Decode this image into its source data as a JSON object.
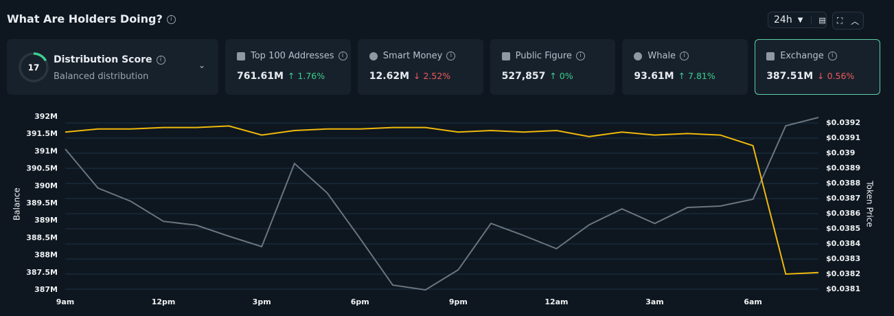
{
  "header": {
    "title": "What Are Holders Doing?",
    "range": "24h"
  },
  "distribution": {
    "score": 17,
    "title": "Distribution Score",
    "subtitle": "Balanced distribution"
  },
  "cards": [
    {
      "label": "Top 100 Addresses",
      "value": "761.61M",
      "change": "↑ 1.76%",
      "color": "#3ecf8e"
    },
    {
      "label": "Smart Money",
      "value": "12.62M",
      "change": "↓ 2.52%",
      "color": "#f05a5a"
    },
    {
      "label": "Public Figure",
      "value": "527,857",
      "change": "↑ 0%",
      "color": "#3ecf8e"
    },
    {
      "label": "Whale",
      "value": "93.61M",
      "change": "↑ 7.81%",
      "color": "#3ecf8e"
    },
    {
      "label": "Exchange",
      "value": "387.51M",
      "change": "↓ 0.56%",
      "color": "#f05a5a"
    }
  ],
  "chart_data": {
    "type": "line",
    "categories": [
      "9am",
      null,
      null,
      "12pm",
      null,
      null,
      "3pm",
      null,
      null,
      "6pm",
      null,
      null,
      "9pm",
      null,
      null,
      "12am",
      null,
      null,
      "3am",
      null,
      null,
      "6am",
      null,
      null
    ],
    "y_label": "Balance",
    "y2_label": "Token Price",
    "series": [
      {
        "name": "Balance",
        "color": "#6b7580",
        "values": [
          391070000,
          389940000,
          389560000,
          388980000,
          388870000,
          388550000,
          388250000,
          390650000,
          389800000,
          388490000,
          387140000,
          387000000,
          387580000,
          388920000,
          388570000,
          388190000,
          388880000,
          389340000,
          388920000,
          389380000,
          389420000,
          389620000,
          391740000,
          391980000
        ]
      },
      {
        "name": "Token Price",
        "color": "#f0b90b",
        "axis": "y2",
        "values": [
          0.03914,
          0.03916,
          0.03916,
          0.03917,
          0.03917,
          0.03918,
          0.03912,
          0.03915,
          0.03916,
          0.03916,
          0.03917,
          0.03917,
          0.03914,
          0.03915,
          0.03914,
          0.03915,
          0.03911,
          0.03914,
          0.03912,
          0.03913,
          0.03912,
          0.03905,
          0.0382,
          0.03821
        ]
      }
    ],
    "ylim": [
      387000000,
      392000000
    ],
    "yticks": [
      {
        "value": 387000000,
        "label": "387M"
      },
      {
        "value": 387500000,
        "label": "387.5M"
      },
      {
        "value": 388000000,
        "label": "388M"
      },
      {
        "value": 388500000,
        "label": "388.5M"
      },
      {
        "value": 389000000,
        "label": "389M"
      },
      {
        "value": 389500000,
        "label": "389.5M"
      },
      {
        "value": 390000000,
        "label": "390M"
      },
      {
        "value": 390500000,
        "label": "390.5M"
      },
      {
        "value": 391000000,
        "label": "391M"
      },
      {
        "value": 391500000,
        "label": "391.5M"
      },
      {
        "value": 392000000,
        "label": "392M"
      }
    ],
    "y2lim": [
      0.0381,
      0.0392
    ],
    "y2ticks": [
      {
        "value": 0.0381,
        "label": "$0.0381"
      },
      {
        "value": 0.0382,
        "label": "$0.0382"
      },
      {
        "value": 0.0383,
        "label": "$0.0383"
      },
      {
        "value": 0.0384,
        "label": "$0.0384"
      },
      {
        "value": 0.0385,
        "label": "$0.0385"
      },
      {
        "value": 0.0386,
        "label": "$0.0386"
      },
      {
        "value": 0.0387,
        "label": "$0.0387"
      },
      {
        "value": 0.0388,
        "label": "$0.0388"
      },
      {
        "value": 0.0389,
        "label": "$0.0389"
      },
      {
        "value": 0.039,
        "label": "$0.039"
      },
      {
        "value": 0.0391,
        "label": "$0.0391"
      },
      {
        "value": 0.0392,
        "label": "$0.0392"
      }
    ],
    "grid": true
  }
}
